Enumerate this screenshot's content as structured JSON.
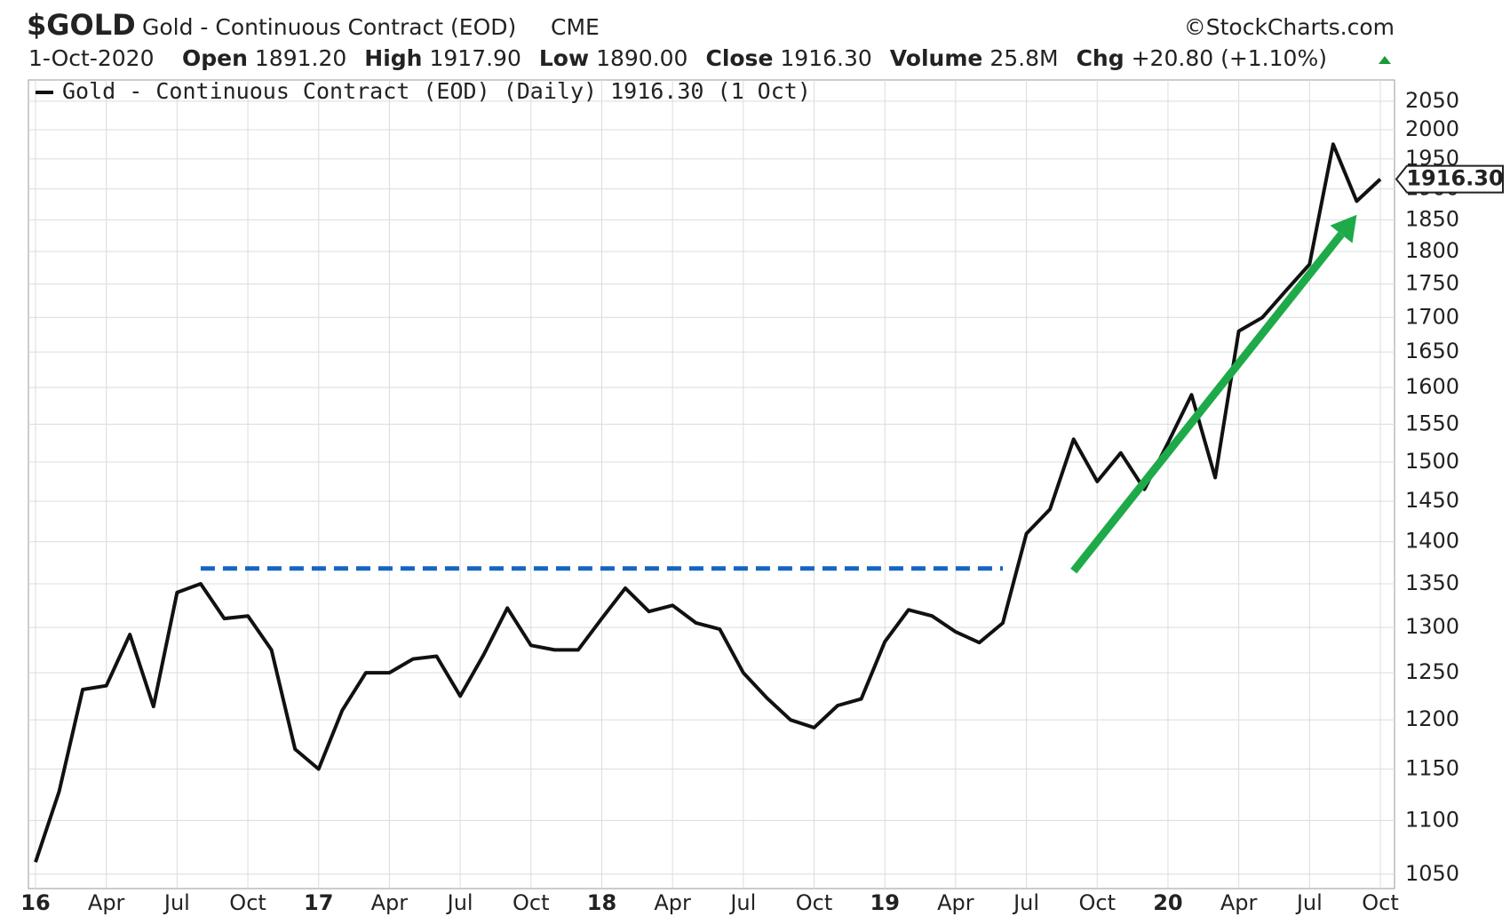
{
  "header": {
    "symbol": "$GOLD",
    "name": "Gold - Continuous Contract (EOD)",
    "exchange": "CME",
    "copyright": "©StockCharts.com",
    "date": "1-Oct-2020",
    "stats": [
      {
        "label": "Open",
        "value": "1891.20"
      },
      {
        "label": "High",
        "value": "1917.90"
      },
      {
        "label": "Low",
        "value": "1890.00"
      },
      {
        "label": "Close",
        "value": "1916.30"
      },
      {
        "label": "Volume",
        "value": "25.8M"
      },
      {
        "label": "Chg",
        "value": "+20.80 (+1.10%)"
      }
    ]
  },
  "chart_data": {
    "type": "line",
    "log_scale": true,
    "grid": true,
    "x": [
      "2016-01",
      "2016-02",
      "2016-03",
      "2016-04",
      "2016-05",
      "2016-06",
      "2016-07",
      "2016-08",
      "2016-09",
      "2016-10",
      "2016-11",
      "2016-12",
      "2017-01",
      "2017-02",
      "2017-03",
      "2017-04",
      "2017-05",
      "2017-06",
      "2017-07",
      "2017-08",
      "2017-09",
      "2017-10",
      "2017-11",
      "2017-12",
      "2018-01",
      "2018-02",
      "2018-03",
      "2018-04",
      "2018-05",
      "2018-06",
      "2018-07",
      "2018-08",
      "2018-09",
      "2018-10",
      "2018-11",
      "2018-12",
      "2019-01",
      "2019-02",
      "2019-03",
      "2019-04",
      "2019-05",
      "2019-06",
      "2019-07",
      "2019-08",
      "2019-09",
      "2019-10",
      "2019-11",
      "2019-12",
      "2020-01",
      "2020-02",
      "2020-03",
      "2020-04",
      "2020-05",
      "2020-06",
      "2020-07",
      "2020-08",
      "2020-09",
      "2020-10"
    ],
    "series": [
      {
        "name": "Gold - Continuous Contract (EOD) (Daily) 1916.30 (1 Oct)",
        "color": "#111111",
        "values": [
          1061,
          1128,
          1232,
          1236,
          1292,
          1214,
          1340,
          1350,
          1310,
          1313,
          1275,
          1170,
          1150,
          1210,
          1250,
          1250,
          1265,
          1268,
          1225,
          1270,
          1322,
          1280,
          1275,
          1275,
          1310,
          1345,
          1318,
          1325,
          1305,
          1298,
          1250,
          1223,
          1200,
          1192,
          1215,
          1222,
          1284,
          1320,
          1313,
          1295,
          1283,
          1305,
          1410,
          1440,
          1530,
          1475,
          1512,
          1465,
          1525,
          1590,
          1480,
          1680,
          1700,
          1740,
          1780,
          1975,
          1880,
          1916.3
        ]
      }
    ],
    "last_value_label": "1916.30",
    "xlim": [
      "2016-01",
      "2020-10"
    ],
    "xticks": [
      {
        "value": "2016-01",
        "label": "16"
      },
      {
        "value": "2016-04",
        "label": "Apr"
      },
      {
        "value": "2016-07",
        "label": "Jul"
      },
      {
        "value": "2016-10",
        "label": "Oct"
      },
      {
        "value": "2017-01",
        "label": "17"
      },
      {
        "value": "2017-04",
        "label": "Apr"
      },
      {
        "value": "2017-07",
        "label": "Jul"
      },
      {
        "value": "2017-10",
        "label": "Oct"
      },
      {
        "value": "2018-01",
        "label": "18"
      },
      {
        "value": "2018-04",
        "label": "Apr"
      },
      {
        "value": "2018-07",
        "label": "Jul"
      },
      {
        "value": "2018-10",
        "label": "Oct"
      },
      {
        "value": "2019-01",
        "label": "19"
      },
      {
        "value": "2019-04",
        "label": "Apr"
      },
      {
        "value": "2019-07",
        "label": "Jul"
      },
      {
        "value": "2019-10",
        "label": "Oct"
      },
      {
        "value": "2020-01",
        "label": "20"
      },
      {
        "value": "2020-04",
        "label": "Apr"
      },
      {
        "value": "2020-07",
        "label": "Jul"
      },
      {
        "value": "2020-10",
        "label": "Oct"
      }
    ],
    "ylim": [
      1037,
      2088
    ],
    "yticks": [
      1050,
      1100,
      1150,
      1200,
      1250,
      1300,
      1350,
      1400,
      1450,
      1500,
      1550,
      1600,
      1650,
      1700,
      1750,
      1800,
      1850,
      1900,
      1950,
      2000,
      2050
    ],
    "reference_line": {
      "value": 1368,
      "x": [
        "2016-08",
        "2019-06"
      ],
      "color": "#1565c0"
    },
    "arrow": {
      "x": [
        "2019-09",
        "2020-09"
      ],
      "y": [
        1365,
        1858
      ],
      "color": "#1faa4a"
    }
  }
}
